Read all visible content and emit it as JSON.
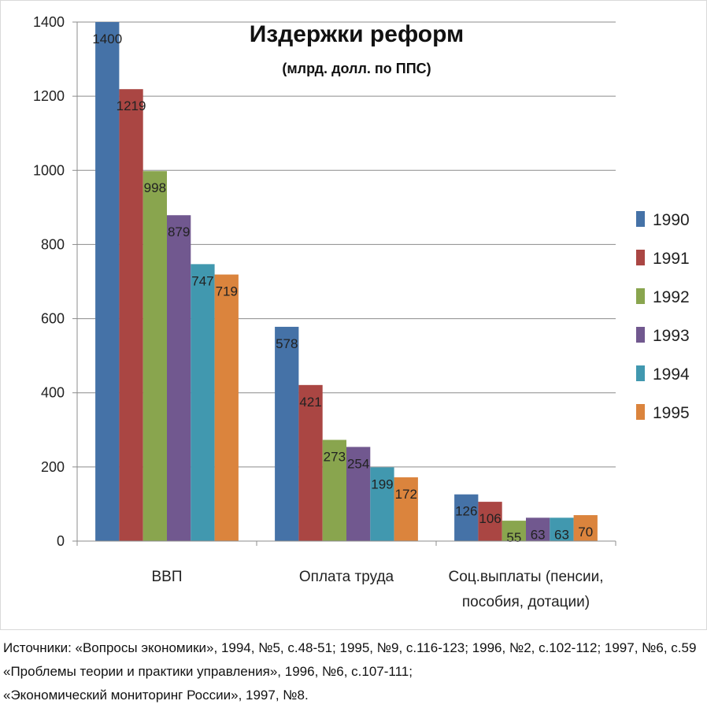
{
  "chart_data": {
    "type": "bar",
    "title": "Издержки реформ",
    "subtitle": "(млрд. долл. по ППС)",
    "categories": [
      [
        "ВВП"
      ],
      [
        "Оплата труда"
      ],
      [
        "Соц.выплаты (пенсии,",
        "пособия, дотации)"
      ]
    ],
    "series": [
      {
        "name": "1990",
        "color": "#4572A7",
        "values": [
          1400,
          578,
          126
        ]
      },
      {
        "name": "1991",
        "color": "#AA4643",
        "values": [
          1219,
          421,
          106
        ]
      },
      {
        "name": "1992",
        "color": "#89A54E",
        "values": [
          998,
          273,
          55
        ]
      },
      {
        "name": "1993",
        "color": "#71588F",
        "values": [
          879,
          254,
          63
        ]
      },
      {
        "name": "1994",
        "color": "#4198AF",
        "values": [
          747,
          199,
          63
        ]
      },
      {
        "name": "1995",
        "color": "#DB843D",
        "values": [
          719,
          172,
          70
        ]
      }
    ],
    "ylim": [
      0,
      1400
    ],
    "yticks": [
      0,
      200,
      400,
      600,
      800,
      1000,
      1200,
      1400
    ],
    "grid": true,
    "legend": "right"
  },
  "sources": [
    "Источники: «Вопросы экономики», 1994, №5, с.48-51; 1995, №9, с.116-123; 1996, №2, с.102-112; 1997, №6, с.59",
    "«Проблемы теории и практики управления», 1996, №6, с.107-111;",
    "«Экономический мониторинг России», 1997, №8."
  ]
}
